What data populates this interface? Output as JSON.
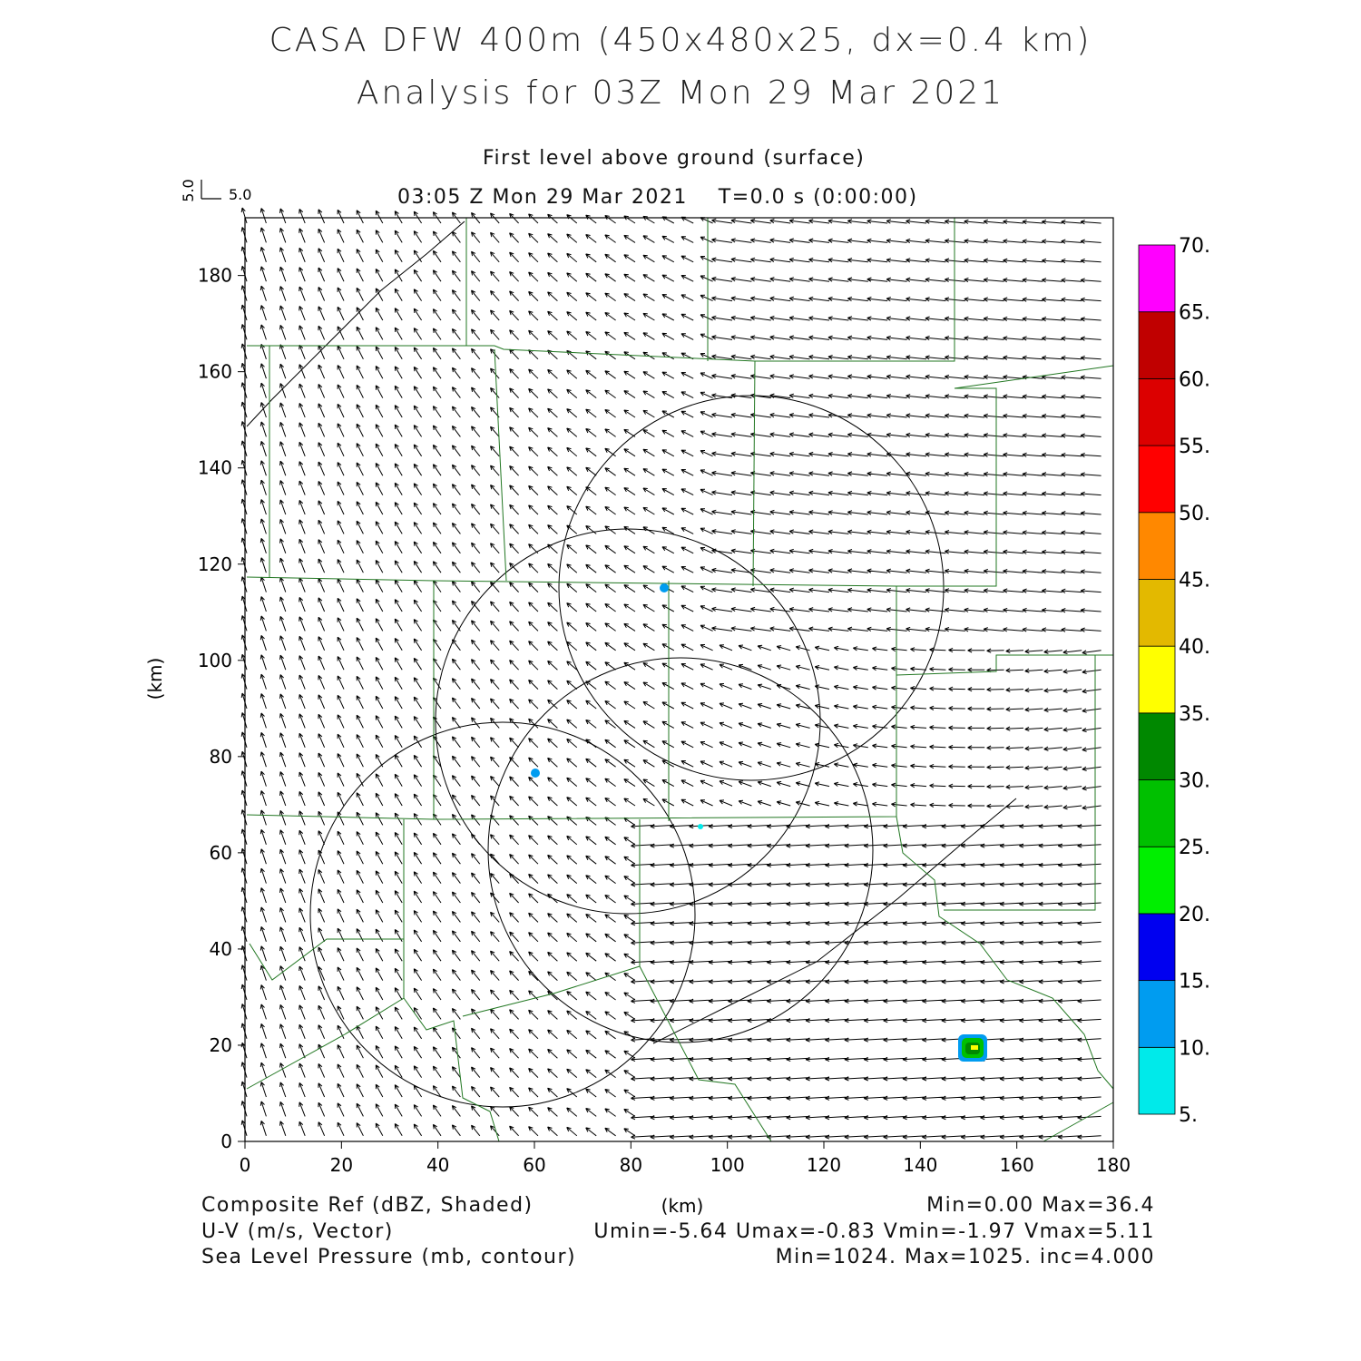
{
  "header": {
    "title_line1": "CASA DFW 400m (450x480x25, dx=0.4 km)",
    "title_line2": "Analysis for 03Z Mon 29 Mar 2021",
    "level": "First level above ground (surface)",
    "time": "03:05 Z Mon 29 Mar 2021    T=0.0 s (0:00:00)",
    "ref_vector_x": "5.0",
    "ref_vector_y": "5.0"
  },
  "axes": {
    "x_unit": "(km)",
    "y_unit": "(km)",
    "x_ticks": [
      0,
      20,
      40,
      60,
      80,
      100,
      120,
      140,
      160,
      180
    ],
    "y_ticks": [
      0,
      20,
      40,
      60,
      80,
      100,
      120,
      140,
      160,
      180
    ],
    "xlim": [
      0,
      180
    ],
    "ylim": [
      0,
      192
    ]
  },
  "colorbar": {
    "labels": [
      "5.",
      "10.",
      "15.",
      "20.",
      "25.",
      "30.",
      "35.",
      "40.",
      "45.",
      "50.",
      "55.",
      "60.",
      "65.",
      "70."
    ],
    "colors": [
      "#00eaea",
      "#009cf0",
      "#0000f0",
      "#00ef00",
      "#00c000",
      "#008800",
      "#ffff00",
      "#e3b900",
      "#ff8800",
      "#ff0000",
      "#dc0000",
      "#c00000",
      "#ff00ff"
    ]
  },
  "footer": {
    "field1": "Composite Ref (dBZ, Shaded)",
    "field1_stats": "Min=0.00 Max=36.4",
    "field2": "U-V (m/s, Vector)",
    "field2_stats": "Umin=-5.64 Umax=-0.83 Vmin=-1.97 Vmax=5.11",
    "field3": "Sea Level Pressure (mb, contour)",
    "field3_stats": "Min=1024. Max=1025. inc=4.000"
  },
  "colors": {
    "county_lines": "#227722",
    "radar_rings": "#000000",
    "vectors": "#000000"
  }
}
